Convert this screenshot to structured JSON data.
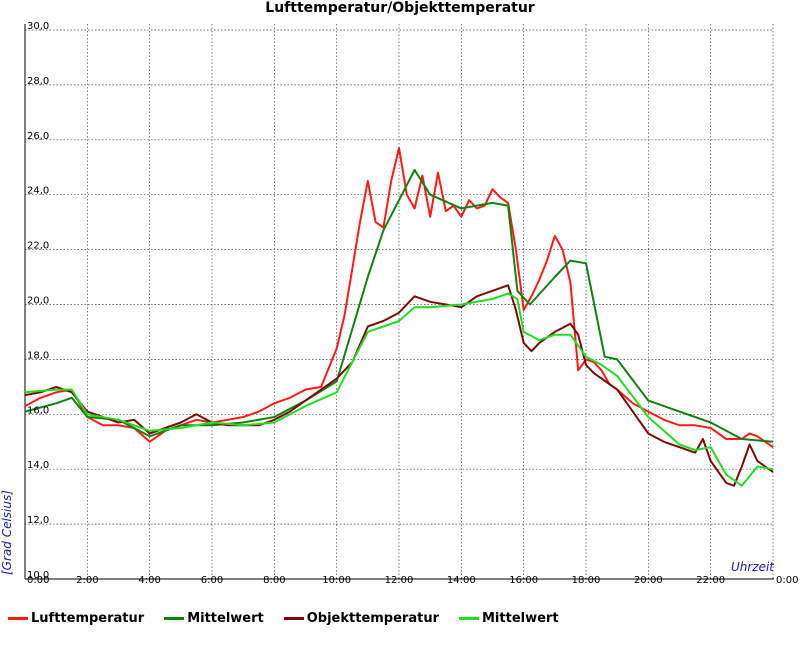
{
  "chart_data": {
    "type": "line",
    "title": "Lufttemperatur/Objekttemperatur",
    "xlabel": "Uhrzeit",
    "ylabel": "[Grad Celsius]",
    "xlim": [
      0,
      24
    ],
    "ylim": [
      10,
      30
    ],
    "x_ticks": [
      "0:00",
      "2:00",
      "4:00",
      "6:00",
      "8:00",
      "10:00",
      "12:00",
      "14:00",
      "16:00",
      "18:00",
      "20:00",
      "22:00",
      "0:00"
    ],
    "y_ticks": [
      "10,0",
      "12,0",
      "14,0",
      "16,0",
      "18,0",
      "20,0",
      "22,0",
      "24,0",
      "26,0",
      "28,0",
      "30,0"
    ],
    "grid": true,
    "legend_position": "bottom",
    "series": [
      {
        "name": "Lufttemperatur",
        "color": "#ff1a1a",
        "x": [
          0,
          0.5,
          1,
          1.5,
          2,
          2.5,
          3,
          3.5,
          4,
          4.5,
          5,
          5.5,
          6,
          6.5,
          7,
          7.5,
          8,
          8.5,
          9,
          9.5,
          10,
          10.25,
          10.5,
          10.75,
          11,
          11.25,
          11.5,
          11.75,
          12,
          12.25,
          12.5,
          12.75,
          13,
          13.25,
          13.5,
          13.75,
          14,
          14.25,
          14.5,
          14.75,
          15,
          15.25,
          15.5,
          15.75,
          16,
          16.25,
          16.5,
          16.75,
          17,
          17.25,
          17.5,
          17.75,
          18,
          18.25,
          18.5,
          18.75,
          19,
          19.5,
          20,
          20.5,
          21,
          21.5,
          22,
          22.5,
          23,
          23.25,
          23.5,
          24
        ],
        "y": [
          16.3,
          16.6,
          16.8,
          16.9,
          15.9,
          15.6,
          15.6,
          15.5,
          15.0,
          15.4,
          15.6,
          15.8,
          15.7,
          15.8,
          15.9,
          16.1,
          16.4,
          16.6,
          16.9,
          17.0,
          18.4,
          19.6,
          21.3,
          23.0,
          24.5,
          23.0,
          22.8,
          24.5,
          25.7,
          24.0,
          23.5,
          24.7,
          23.2,
          24.8,
          23.4,
          23.6,
          23.2,
          23.8,
          23.5,
          23.6,
          24.2,
          23.9,
          23.7,
          22.0,
          19.8,
          20.3,
          20.9,
          21.6,
          22.5,
          22.0,
          20.8,
          17.6,
          18.0,
          17.9,
          17.6,
          17.1,
          16.9,
          16.4,
          16.1,
          15.8,
          15.6,
          15.6,
          15.5,
          15.1,
          15.1,
          15.3,
          15.2,
          14.8
        ]
      },
      {
        "name": "Mittelwert",
        "color": "#118011",
        "x": [
          0,
          1,
          1.5,
          2,
          3,
          4,
          5,
          6,
          7,
          8,
          9,
          10,
          11,
          11.5,
          12,
          12.5,
          13,
          14,
          15,
          15.5,
          15.8,
          16.2,
          17,
          17.5,
          18,
          18.6,
          19,
          20,
          21,
          22,
          23,
          24
        ],
        "y": [
          16.1,
          16.4,
          16.6,
          15.9,
          15.8,
          15.2,
          15.6,
          15.6,
          15.7,
          15.9,
          16.5,
          17.2,
          21.0,
          22.7,
          23.8,
          24.9,
          24.0,
          23.5,
          23.7,
          23.6,
          20.5,
          20.0,
          21.0,
          21.6,
          21.5,
          18.1,
          18.0,
          16.5,
          16.1,
          15.7,
          15.1,
          15.0
        ]
      },
      {
        "name": "Objekttemperatur",
        "color": "#7a0a0a",
        "x": [
          0,
          0.5,
          1,
          1.5,
          2,
          2.5,
          3,
          3.5,
          4,
          4.5,
          5,
          5.5,
          6,
          6.5,
          7,
          7.5,
          8,
          8.5,
          9,
          9.5,
          10,
          10.5,
          11,
          11.5,
          12,
          12.5,
          13,
          13.5,
          14,
          14.5,
          15,
          15.5,
          15.75,
          16,
          16.25,
          16.5,
          17,
          17.5,
          17.75,
          18,
          18.25,
          18.5,
          19,
          19.5,
          20,
          20.5,
          21,
          21.5,
          21.75,
          22,
          22.5,
          22.75,
          23,
          23.25,
          23.5,
          24
        ],
        "y": [
          16.7,
          16.8,
          17.0,
          16.8,
          16.1,
          15.9,
          15.7,
          15.8,
          15.3,
          15.5,
          15.7,
          16.0,
          15.7,
          15.6,
          15.6,
          15.6,
          15.8,
          16.1,
          16.5,
          16.9,
          17.3,
          17.9,
          19.2,
          19.4,
          19.7,
          20.3,
          20.1,
          20.0,
          19.9,
          20.3,
          20.5,
          20.7,
          19.8,
          18.6,
          18.3,
          18.6,
          19.0,
          19.3,
          18.9,
          17.8,
          17.5,
          17.3,
          16.9,
          16.1,
          15.3,
          15.0,
          14.8,
          14.6,
          15.1,
          14.3,
          13.5,
          13.4,
          14.1,
          14.9,
          14.3,
          13.9
        ]
      },
      {
        "name": "Mittelwert",
        "color": "#22dd22",
        "x": [
          0,
          1,
          1.5,
          2,
          3,
          4,
          5,
          6,
          7,
          8,
          9,
          10,
          11,
          11.5,
          12,
          12.5,
          13,
          14,
          15,
          15.5,
          15.8,
          16,
          16.5,
          17,
          17.5,
          18,
          18.5,
          19,
          20,
          21,
          21.5,
          22,
          22.5,
          23,
          23.5,
          24
        ],
        "y": [
          16.8,
          16.9,
          16.9,
          16.0,
          15.8,
          15.4,
          15.5,
          15.7,
          15.6,
          15.7,
          16.3,
          16.8,
          19.0,
          19.2,
          19.4,
          19.9,
          19.9,
          20.0,
          20.2,
          20.4,
          20.2,
          19.0,
          18.7,
          18.9,
          18.9,
          18.1,
          17.8,
          17.4,
          15.9,
          14.9,
          14.7,
          14.8,
          13.8,
          13.4,
          14.1,
          14.0
        ]
      }
    ]
  }
}
